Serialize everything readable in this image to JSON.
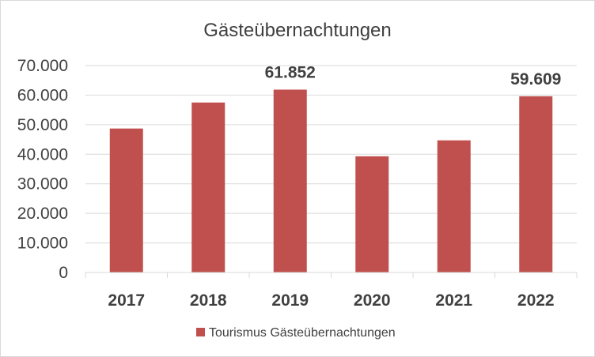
{
  "chart_data": {
    "type": "bar",
    "title": "Gästeübernachtungen",
    "categories": [
      "2017",
      "2018",
      "2019",
      "2020",
      "2021",
      "2022"
    ],
    "series": [
      {
        "name": "Tourismus Gästeübernachtungen",
        "values": [
          48700,
          57500,
          61852,
          39300,
          44700,
          59609
        ],
        "color": "#c0504d"
      }
    ],
    "data_labels": [
      {
        "category": "2019",
        "text": "61.852"
      },
      {
        "category": "2022",
        "text": "59.609"
      }
    ],
    "y_ticks": [
      "0",
      "10.000",
      "20.000",
      "30.000",
      "40.000",
      "50.000",
      "60.000",
      "70.000"
    ],
    "ylim": [
      0,
      70000
    ],
    "xlabel": "",
    "ylabel": "",
    "grid": true,
    "legend_position": "bottom"
  }
}
